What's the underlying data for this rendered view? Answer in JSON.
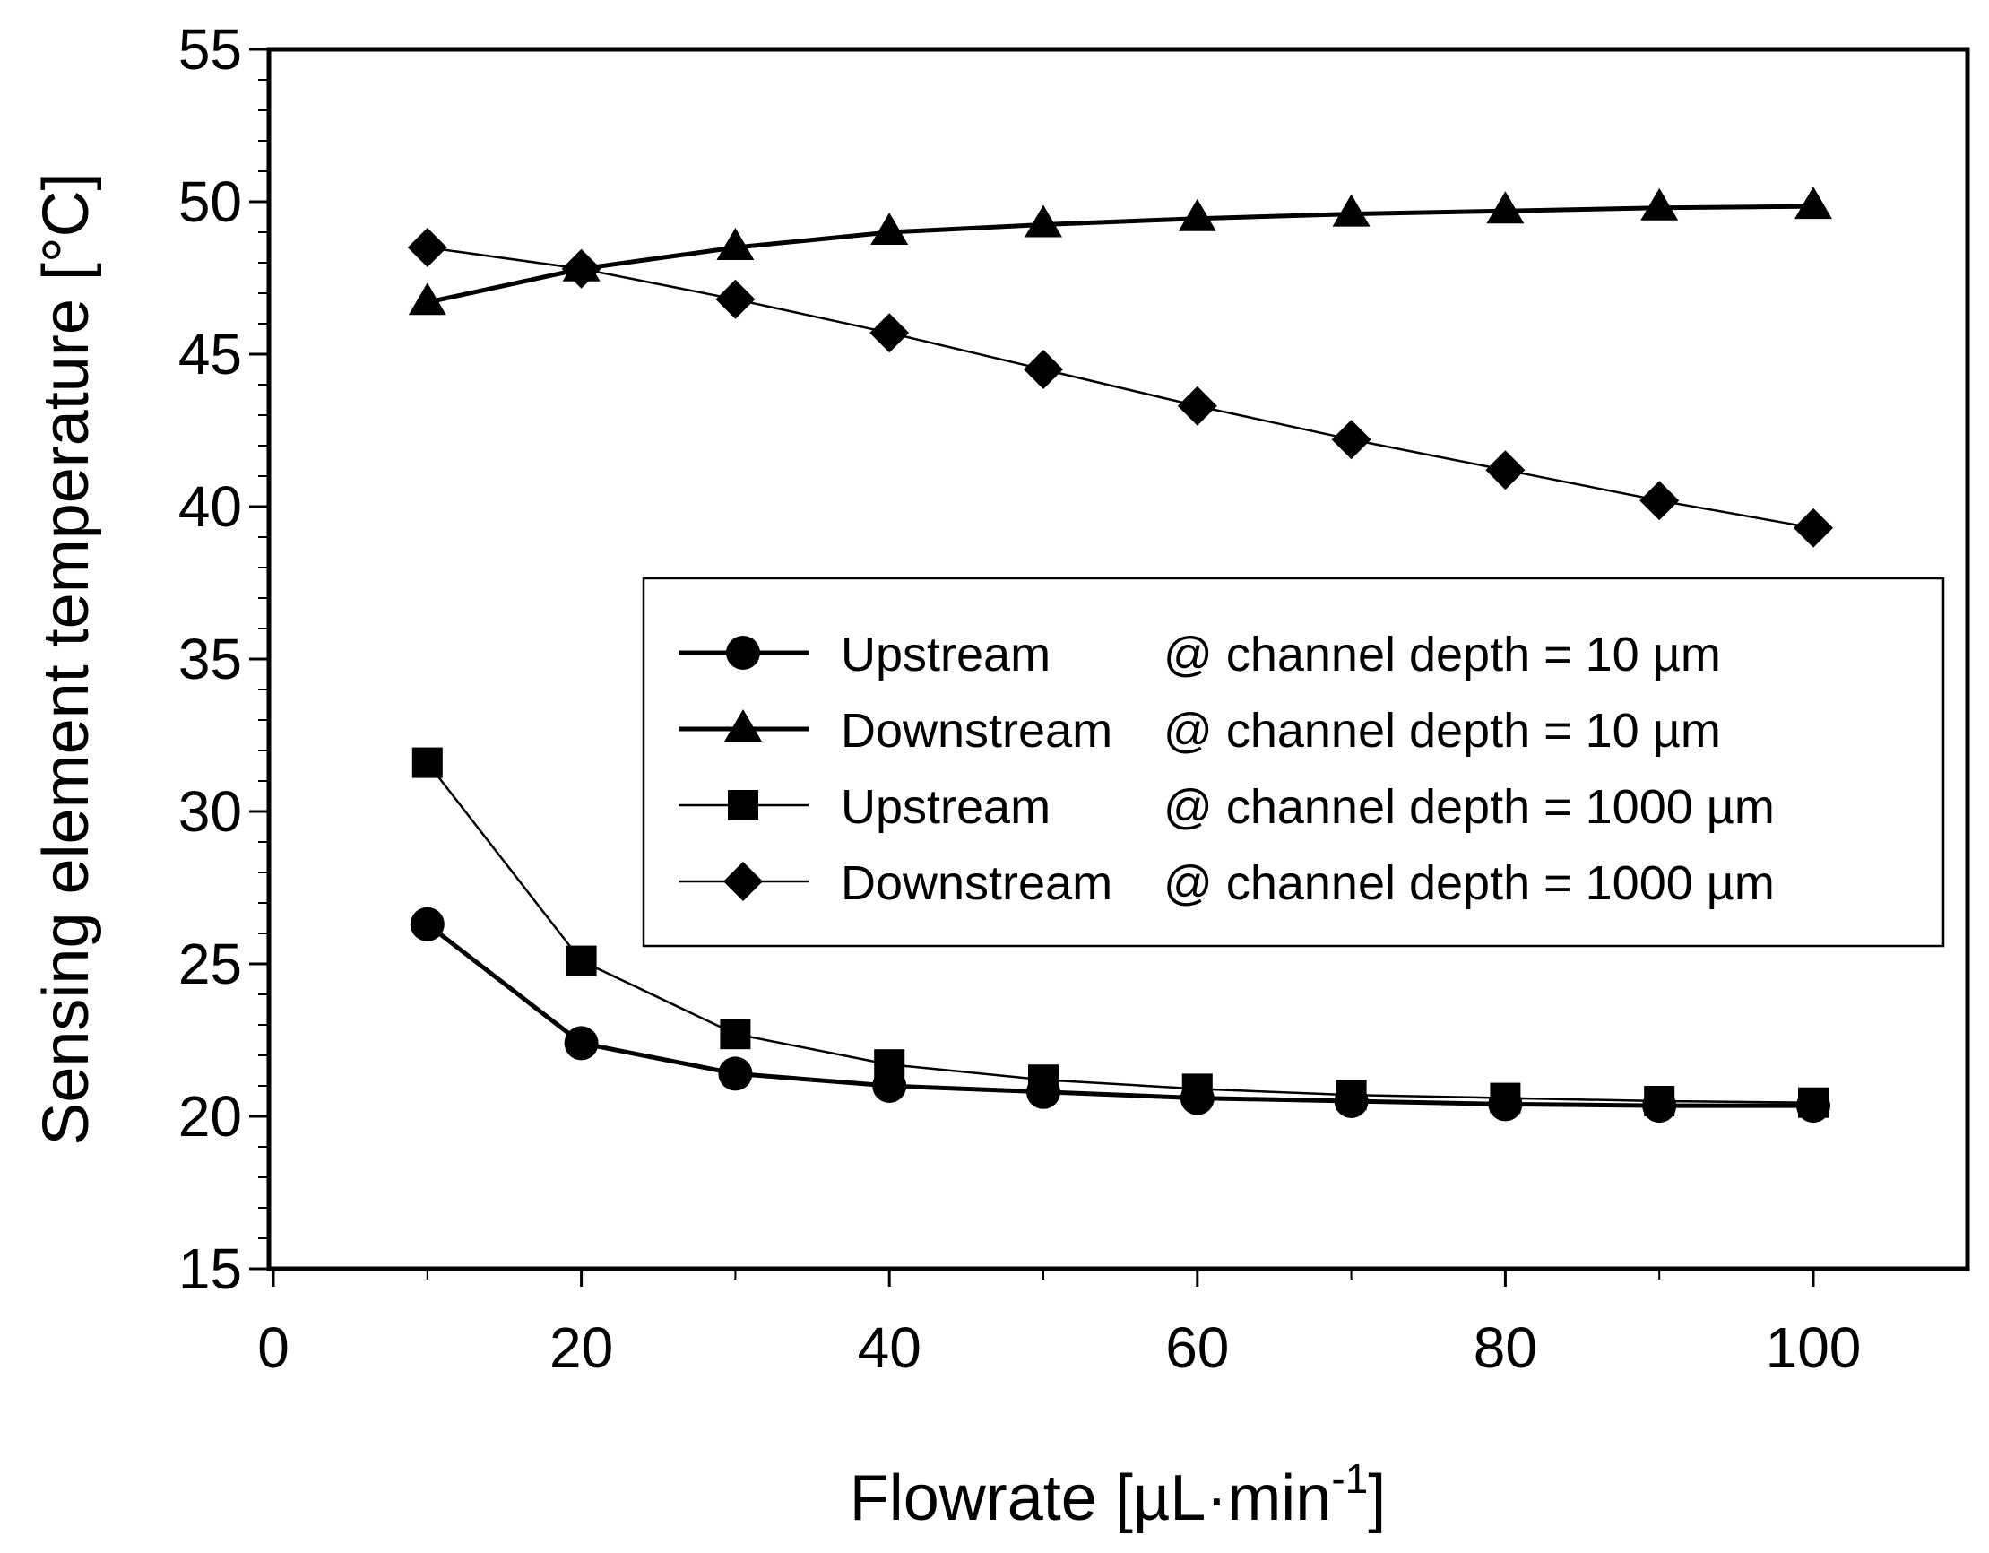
{
  "chart_data": {
    "type": "line",
    "title": "",
    "xlabel": "Flowrate [µL·min",
    "xlabel_sup": "-1",
    "xlabel_end": "]",
    "ylabel": "Sensing element temperature [°C]",
    "xlim": [
      0,
      110
    ],
    "ylim": [
      15,
      55
    ],
    "x_ticks": [
      0,
      20,
      40,
      60,
      80,
      100
    ],
    "y_ticks": [
      15,
      20,
      25,
      30,
      35,
      40,
      45,
      50,
      55
    ],
    "x_tick_labels": [
      "0",
      "20",
      "40",
      "60",
      "80",
      "100"
    ],
    "y_tick_labels": [
      "15",
      "20",
      "25",
      "30",
      "35",
      "40",
      "45",
      "50",
      "55"
    ],
    "x": [
      10,
      20,
      30,
      40,
      50,
      60,
      70,
      80,
      90,
      100
    ],
    "series": [
      {
        "name": "Upstream",
        "label": "@ channel depth = 10 µm",
        "marker": "circle",
        "line": "thick",
        "values": [
          26.3,
          22.4,
          21.4,
          21.0,
          20.8,
          20.6,
          20.5,
          20.4,
          20.35,
          20.35
        ]
      },
      {
        "name": "Downstream",
        "label": "@ channel depth = 10 µm",
        "marker": "triangle",
        "line": "thick",
        "values": [
          46.7,
          47.8,
          48.5,
          49.0,
          49.25,
          49.45,
          49.6,
          49.7,
          49.8,
          49.85
        ]
      },
      {
        "name": "Upstream",
        "label": "@ channel depth = 1000 µm",
        "marker": "square",
        "line": "thin",
        "values": [
          31.6,
          25.1,
          22.7,
          21.7,
          21.2,
          20.9,
          20.7,
          20.6,
          20.5,
          20.45
        ]
      },
      {
        "name": "Downstream",
        "label": "@ channel depth = 1000 µm",
        "marker": "diamond",
        "line": "thin",
        "values": [
          48.5,
          47.8,
          46.8,
          45.7,
          44.5,
          43.3,
          42.2,
          41.2,
          40.2,
          39.3
        ]
      }
    ],
    "legend_position": "center-right",
    "grid": false
  }
}
